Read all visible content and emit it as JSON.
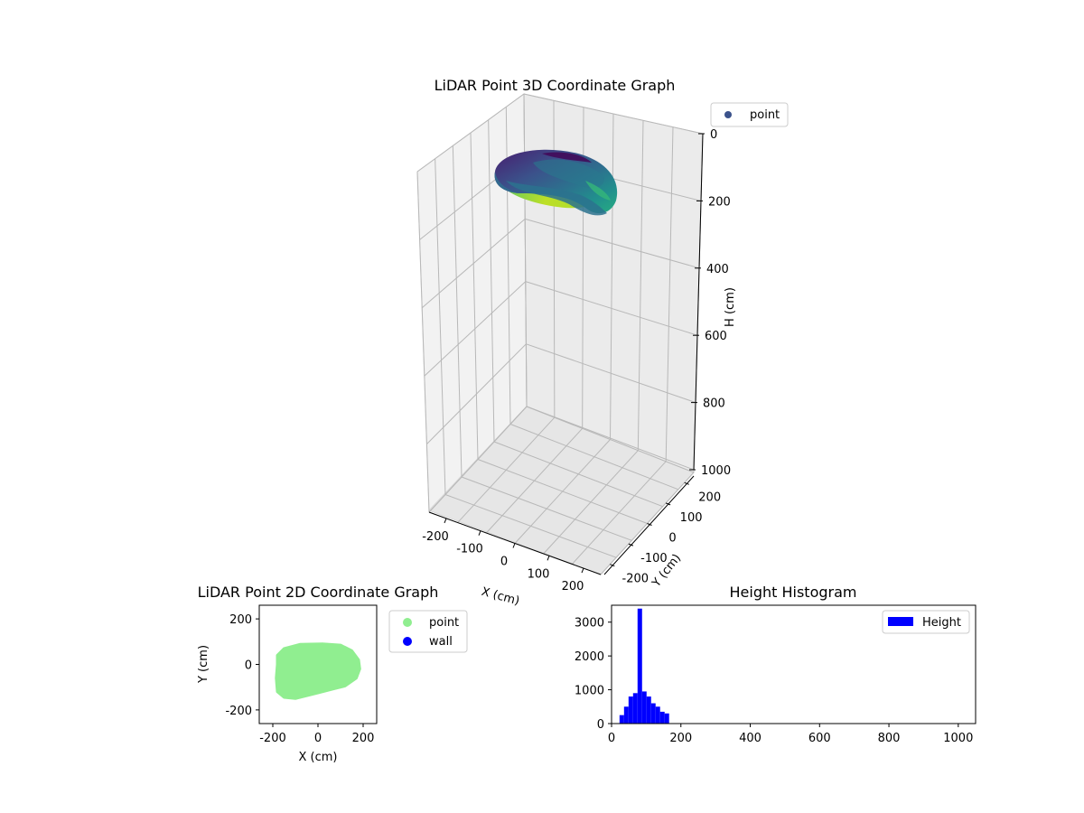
{
  "chart_data": [
    {
      "type": "scatter3d",
      "title": "LiDAR Point 3D Coordinate Graph",
      "xlabel": "X (cm)",
      "ylabel": "Y (cm)",
      "zlabel": "H (cm)",
      "xticks": [
        "-200",
        "-100",
        "0",
        "100",
        "200"
      ],
      "yticks": [
        "-200",
        "-100",
        "0",
        "100",
        "200"
      ],
      "zticks": [
        "0",
        "200",
        "400",
        "600",
        "800",
        "1000"
      ],
      "xlim": [
        -250,
        250
      ],
      "ylim": [
        -250,
        250
      ],
      "zlim": [
        0,
        1000
      ],
      "zaxis_inverted": true,
      "colormap": "viridis",
      "legend": [
        {
          "label": "point",
          "color": "#3b528b"
        }
      ],
      "shape_description": "ellipsoidal ring of points, X approx -200 to 180, Y approx -150 to 90, H approx 30 to 170"
    },
    {
      "type": "scatter",
      "title": "LiDAR Point 2D Coordinate Graph",
      "xlabel": "X (cm)",
      "ylabel": "Y (cm)",
      "xticks": [
        "-200",
        "0",
        "200"
      ],
      "yticks": [
        "200",
        "0",
        "-200"
      ],
      "xlim": [
        -260,
        260
      ],
      "ylim": [
        -260,
        260
      ],
      "series": [
        {
          "name": "point",
          "color": "#90ee90",
          "outline": [
            [
              -180,
              40
            ],
            [
              -150,
              70
            ],
            [
              -80,
              88
            ],
            [
              20,
              90
            ],
            [
              100,
              85
            ],
            [
              150,
              60
            ],
            [
              180,
              20
            ],
            [
              185,
              -20
            ],
            [
              170,
              -60
            ],
            [
              120,
              -95
            ],
            [
              60,
              -110
            ],
            [
              0,
              -125
            ],
            [
              -60,
              -140
            ],
            [
              -100,
              -150
            ],
            [
              -150,
              -145
            ],
            [
              -180,
              -120
            ],
            [
              -185,
              -60
            ],
            [
              -180,
              0
            ]
          ]
        },
        {
          "name": "wall",
          "color": "#0000ff",
          "outline": []
        }
      ],
      "legend": [
        {
          "label": "point",
          "color": "#90ee90"
        },
        {
          "label": "wall",
          "color": "#0000ff"
        }
      ]
    },
    {
      "type": "histogram",
      "title": "Height Histogram",
      "xlabel": "",
      "ylabel": "",
      "xticks": [
        "0",
        "200",
        "400",
        "600",
        "800",
        "1000"
      ],
      "yticks": [
        "0",
        "1000",
        "2000",
        "3000"
      ],
      "xlim": [
        0,
        1050
      ],
      "ylim": [
        0,
        3500
      ],
      "bin_width": 13,
      "bins_start": [
        23,
        36,
        49,
        62,
        75,
        88,
        101,
        114,
        127,
        140,
        153,
        166
      ],
      "counts": [
        250,
        500,
        800,
        900,
        3400,
        950,
        800,
        600,
        500,
        350,
        300,
        0
      ],
      "color": "#0000ff",
      "legend": [
        {
          "label": "Height",
          "color": "#0000ff"
        }
      ]
    }
  ]
}
